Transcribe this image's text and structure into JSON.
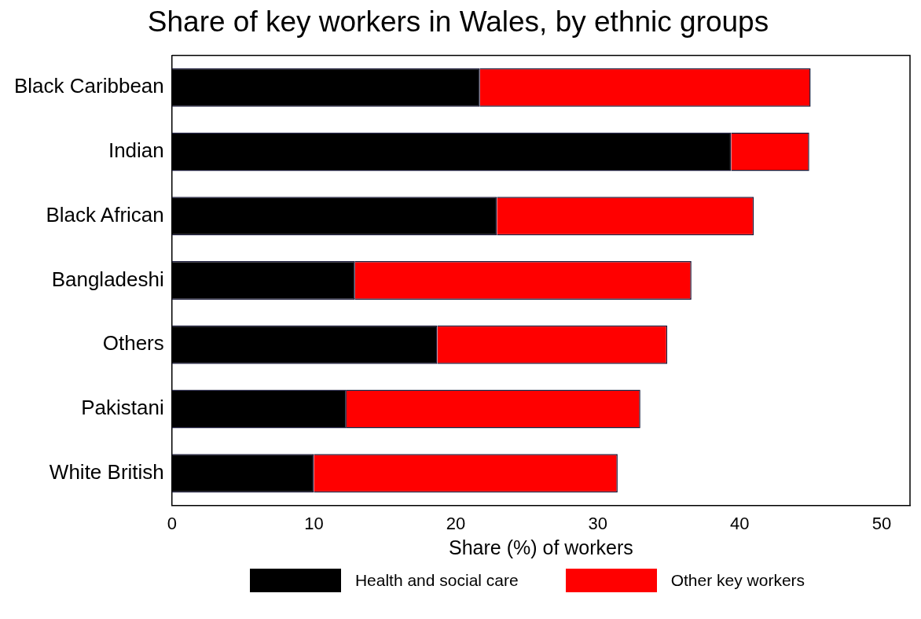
{
  "chart_data": {
    "type": "bar",
    "orientation": "horizontal",
    "stacked": true,
    "title": "Share of key workers in Wales, by ethnic groups",
    "xlabel": "Share (%) of workers",
    "categories": [
      "Black Caribbean",
      "Indian",
      "Black African",
      "Bangladeshi",
      "Others",
      "Pakistani",
      "White British"
    ],
    "series": [
      {
        "name": "Health and social care",
        "color": "#000000",
        "values": [
          21.7,
          39.4,
          22.9,
          12.9,
          18.7,
          12.3,
          10.0
        ]
      },
      {
        "name": "Other key workers",
        "color": "#ff0000",
        "values": [
          23.3,
          5.5,
          18.1,
          23.7,
          16.2,
          20.7,
          21.4
        ]
      }
    ],
    "xlim": [
      0,
      52
    ],
    "xticks": [
      0,
      10,
      20,
      30,
      40,
      50
    ],
    "grid": false,
    "legend": "bottom"
  }
}
